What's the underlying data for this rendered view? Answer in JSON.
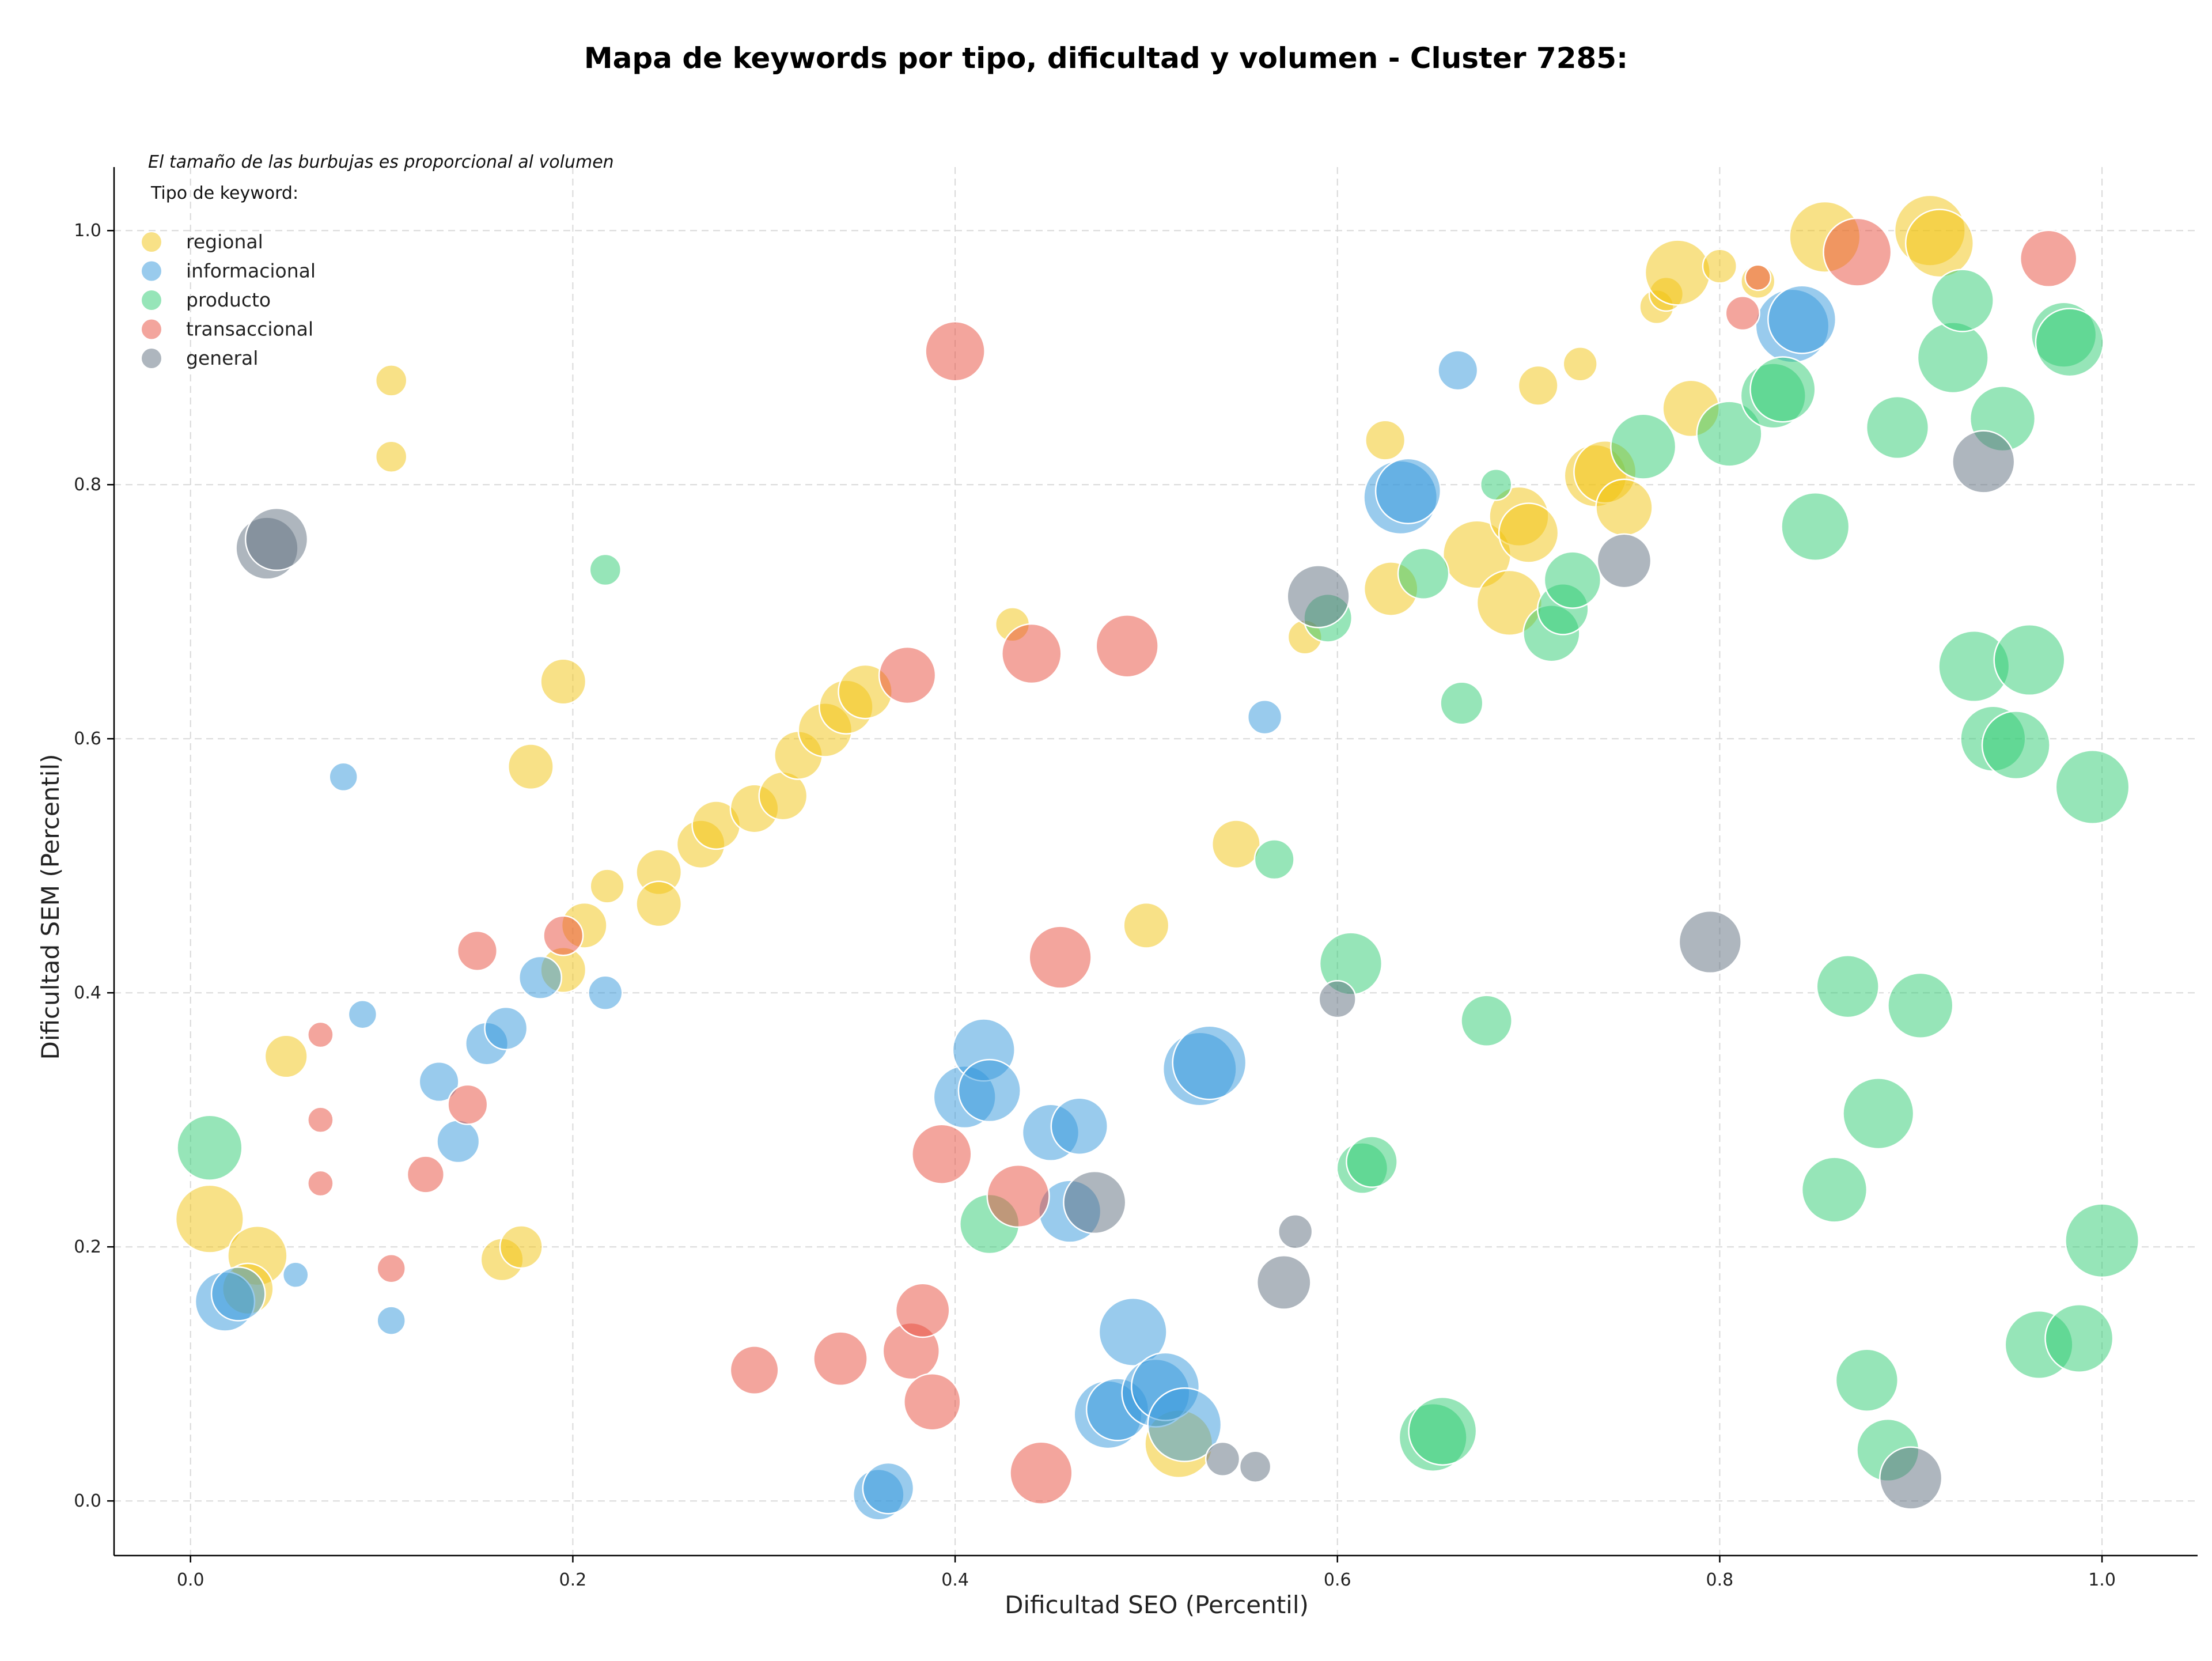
{
  "chart_data": {
    "type": "scatter",
    "title": "Mapa de keywords por tipo, dificultad y volumen - Cluster 7285:",
    "xlabel": "Dificultad SEO (Percentil)",
    "ylabel": "Dificultad SEM (Percentil)",
    "xlim": [
      -0.04,
      1.05
    ],
    "ylim": [
      -0.043,
      1.05
    ],
    "xticks": [
      "0.0",
      "0.2",
      "0.4",
      "0.6",
      "0.8",
      "1.0"
    ],
    "yticks": [
      "0.0",
      "0.2",
      "0.4",
      "0.6",
      "0.8",
      "1.0"
    ],
    "xtick_values": [
      0,
      0.2,
      0.4,
      0.6,
      0.8,
      1.0
    ],
    "ytick_values": [
      0,
      0.2,
      0.4,
      0.6,
      0.8,
      1.0
    ],
    "grid": true,
    "note": "El tamaño de las burbujas es proporcional al volumen",
    "legend_title": "Tipo de keyword:",
    "legend_position": "top-left",
    "series": [
      {
        "name": "regional",
        "color": "#f1c40f",
        "points": [
          [
            0.105,
            0.882,
            11
          ],
          [
            0.105,
            0.822,
            11
          ],
          [
            0.195,
            0.645,
            16
          ],
          [
            0.178,
            0.578,
            16
          ],
          [
            0.05,
            0.35,
            15
          ],
          [
            0.01,
            0.222,
            24
          ],
          [
            0.035,
            0.193,
            21
          ],
          [
            0.03,
            0.167,
            18
          ],
          [
            0.163,
            0.19,
            15
          ],
          [
            0.173,
            0.2,
            15
          ],
          [
            0.195,
            0.418,
            16
          ],
          [
            0.206,
            0.453,
            16
          ],
          [
            0.218,
            0.484,
            12
          ],
          [
            0.245,
            0.495,
            16
          ],
          [
            0.245,
            0.47,
            16
          ],
          [
            0.267,
            0.517,
            17
          ],
          [
            0.275,
            0.532,
            17
          ],
          [
            0.295,
            0.545,
            17
          ],
          [
            0.31,
            0.555,
            17
          ],
          [
            0.318,
            0.587,
            17
          ],
          [
            0.332,
            0.607,
            19
          ],
          [
            0.343,
            0.625,
            19
          ],
          [
            0.353,
            0.637,
            19
          ],
          [
            0.43,
            0.69,
            12
          ],
          [
            0.5,
            0.453,
            16
          ],
          [
            0.547,
            0.517,
            17
          ],
          [
            0.583,
            0.68,
            12
          ],
          [
            0.625,
            0.835,
            14
          ],
          [
            0.628,
            0.718,
            19
          ],
          [
            0.673,
            0.745,
            24
          ],
          [
            0.69,
            0.707,
            23
          ],
          [
            0.695,
            0.775,
            21
          ],
          [
            0.7,
            0.762,
            21
          ],
          [
            0.705,
            0.878,
            14
          ],
          [
            0.727,
            0.895,
            12
          ],
          [
            0.735,
            0.807,
            22
          ],
          [
            0.74,
            0.81,
            22
          ],
          [
            0.75,
            0.782,
            20
          ],
          [
            0.767,
            0.94,
            12
          ],
          [
            0.772,
            0.95,
            12
          ],
          [
            0.778,
            0.967,
            23
          ],
          [
            0.785,
            0.86,
            20
          ],
          [
            0.8,
            0.972,
            12
          ],
          [
            0.82,
            0.96,
            12
          ],
          [
            0.855,
            0.995,
            25
          ],
          [
            0.91,
            1.0,
            25
          ],
          [
            0.915,
            0.99,
            24
          ],
          [
            0.517,
            0.045,
            24
          ]
        ]
      },
      {
        "name": "informacional",
        "color": "#3498db",
        "points": [
          [
            0.08,
            0.57,
            10
          ],
          [
            0.09,
            0.383,
            10
          ],
          [
            0.055,
            0.178,
            9
          ],
          [
            0.018,
            0.157,
            21
          ],
          [
            0.025,
            0.163,
            19
          ],
          [
            0.105,
            0.142,
            10
          ],
          [
            0.13,
            0.33,
            14
          ],
          [
            0.14,
            0.283,
            15
          ],
          [
            0.155,
            0.36,
            15
          ],
          [
            0.165,
            0.372,
            15
          ],
          [
            0.183,
            0.412,
            15
          ],
          [
            0.217,
            0.4,
            12
          ],
          [
            0.36,
            0.005,
            18
          ],
          [
            0.365,
            0.01,
            18
          ],
          [
            0.405,
            0.318,
            22
          ],
          [
            0.415,
            0.355,
            22
          ],
          [
            0.418,
            0.323,
            22
          ],
          [
            0.45,
            0.29,
            20
          ],
          [
            0.46,
            0.228,
            22
          ],
          [
            0.465,
            0.295,
            20
          ],
          [
            0.48,
            0.068,
            24
          ],
          [
            0.485,
            0.072,
            22
          ],
          [
            0.493,
            0.133,
            24
          ],
          [
            0.505,
            0.085,
            24
          ],
          [
            0.51,
            0.09,
            24
          ],
          [
            0.52,
            0.06,
            26
          ],
          [
            0.528,
            0.34,
            26
          ],
          [
            0.533,
            0.345,
            26
          ],
          [
            0.562,
            0.617,
            12
          ],
          [
            0.633,
            0.79,
            26
          ],
          [
            0.637,
            0.795,
            23
          ],
          [
            0.663,
            0.89,
            14
          ],
          [
            0.838,
            0.925,
            26
          ],
          [
            0.843,
            0.93,
            24
          ]
        ]
      },
      {
        "name": "producto",
        "color": "#2ecc71",
        "points": [
          [
            0.01,
            0.278,
            23
          ],
          [
            0.217,
            0.733,
            11
          ],
          [
            0.418,
            0.218,
            21
          ],
          [
            0.567,
            0.505,
            14
          ],
          [
            0.595,
            0.695,
            17
          ],
          [
            0.607,
            0.423,
            22
          ],
          [
            0.613,
            0.262,
            18
          ],
          [
            0.618,
            0.267,
            18
          ],
          [
            0.645,
            0.73,
            18
          ],
          [
            0.65,
            0.05,
            24
          ],
          [
            0.655,
            0.055,
            24
          ],
          [
            0.665,
            0.628,
            15
          ],
          [
            0.678,
            0.378,
            18
          ],
          [
            0.683,
            0.8,
            11
          ],
          [
            0.712,
            0.683,
            20
          ],
          [
            0.718,
            0.702,
            18
          ],
          [
            0.723,
            0.725,
            20
          ],
          [
            0.76,
            0.83,
            23
          ],
          [
            0.805,
            0.84,
            23
          ],
          [
            0.828,
            0.87,
            23
          ],
          [
            0.833,
            0.875,
            23
          ],
          [
            0.85,
            0.767,
            24
          ],
          [
            0.86,
            0.245,
            23
          ],
          [
            0.867,
            0.405,
            22
          ],
          [
            0.877,
            0.095,
            22
          ],
          [
            0.883,
            0.305,
            25
          ],
          [
            0.888,
            0.04,
            22
          ],
          [
            0.893,
            0.845,
            22
          ],
          [
            0.905,
            0.39,
            23
          ],
          [
            0.922,
            0.9,
            25
          ],
          [
            0.927,
            0.945,
            22
          ],
          [
            0.933,
            0.657,
            25
          ],
          [
            0.943,
            0.6,
            23
          ],
          [
            0.948,
            0.852,
            23
          ],
          [
            0.955,
            0.595,
            24
          ],
          [
            0.962,
            0.662,
            25
          ],
          [
            0.967,
            0.123,
            24
          ],
          [
            0.98,
            0.918,
            23
          ],
          [
            0.983,
            0.912,
            24
          ],
          [
            0.988,
            0.128,
            24
          ],
          [
            0.995,
            0.562,
            26
          ],
          [
            1.0,
            0.205,
            26
          ]
        ]
      },
      {
        "name": "transaccional",
        "color": "#e74c3c",
        "points": [
          [
            0.068,
            0.367,
            9
          ],
          [
            0.068,
            0.3,
            9
          ],
          [
            0.068,
            0.25,
            9
          ],
          [
            0.105,
            0.183,
            10
          ],
          [
            0.123,
            0.257,
            13
          ],
          [
            0.145,
            0.312,
            14
          ],
          [
            0.15,
            0.433,
            14
          ],
          [
            0.195,
            0.445,
            14
          ],
          [
            0.295,
            0.103,
            17
          ],
          [
            0.34,
            0.112,
            19
          ],
          [
            0.377,
            0.118,
            20
          ],
          [
            0.383,
            0.15,
            19
          ],
          [
            0.388,
            0.078,
            20
          ],
          [
            0.393,
            0.273,
            21
          ],
          [
            0.4,
            0.905,
            21
          ],
          [
            0.433,
            0.24,
            22
          ],
          [
            0.44,
            0.667,
            21
          ],
          [
            0.445,
            0.022,
            22
          ],
          [
            0.455,
            0.428,
            22
          ],
          [
            0.49,
            0.673,
            22
          ],
          [
            0.375,
            0.65,
            20
          ],
          [
            0.812,
            0.935,
            12
          ],
          [
            0.82,
            0.963,
            9
          ],
          [
            0.872,
            0.983,
            24
          ],
          [
            0.972,
            0.978,
            20
          ]
        ]
      },
      {
        "name": "general",
        "color": "#5d6d7e",
        "points": [
          [
            0.04,
            0.75,
            22
          ],
          [
            0.045,
            0.757,
            22
          ],
          [
            0.473,
            0.235,
            22
          ],
          [
            0.54,
            0.033,
            12
          ],
          [
            0.557,
            0.027,
            11
          ],
          [
            0.572,
            0.172,
            19
          ],
          [
            0.578,
            0.212,
            12
          ],
          [
            0.59,
            0.712,
            22
          ],
          [
            0.6,
            0.395,
            13
          ],
          [
            0.75,
            0.74,
            19
          ],
          [
            0.795,
            0.44,
            22
          ],
          [
            0.9,
            0.018,
            22
          ],
          [
            0.938,
            0.818,
            22
          ]
        ]
      }
    ]
  }
}
